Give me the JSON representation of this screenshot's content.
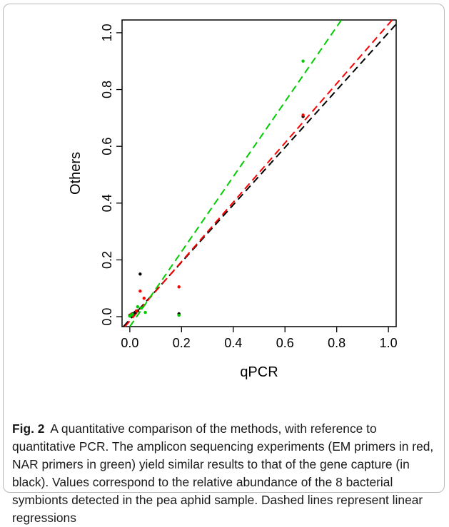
{
  "caption": {
    "label": "Fig. 2",
    "text": "A quantitative comparison of the methods, with reference to quantitative PCR. The amplicon sequencing experiments (EM primers in red, NAR primers in green) yield similar results to that of the gene capture (in black). Values correspond to the relative abundance of the 8 bacterial symbionts detected in the pea aphid sample. Dashed lines represent linear regressions"
  },
  "colors": {
    "gene_capture": "#000000",
    "em_primers": "#ff0000",
    "nar_primers": "#00cc00"
  },
  "chart_data": {
    "type": "scatter",
    "title": "",
    "xlabel": "qPCR",
    "ylabel": "Others",
    "xlim": [
      -0.03,
      1.03
    ],
    "ylim": [
      -0.035,
      1.045
    ],
    "xticks": [
      0.0,
      0.2,
      0.4,
      0.6,
      0.8,
      1.0
    ],
    "yticks": [
      0.0,
      0.2,
      0.4,
      0.6,
      0.8,
      1.0
    ],
    "xtick_labels": [
      "0.0",
      "0.2",
      "0.4",
      "0.6",
      "0.8",
      "1.0"
    ],
    "ytick_labels": [
      "0.0",
      "0.2",
      "0.4",
      "0.6",
      "0.8",
      "1.0"
    ],
    "grid": false,
    "series": [
      {
        "color": "#000000",
        "x": [
          0.0,
          0.005,
          0.01,
          0.02,
          0.03,
          0.04,
          0.19,
          0.67
        ],
        "y": [
          0.005,
          0.003,
          0.01,
          0.015,
          0.02,
          0.15,
          0.01,
          0.705
        ],
        "regression": {
          "slope": 1.01,
          "intercept": -0.01
        }
      },
      {
        "color": "#ff0000",
        "x": [
          0.0,
          0.005,
          0.01,
          0.025,
          0.04,
          0.055,
          0.19,
          0.67
        ],
        "y": [
          0.003,
          0.008,
          0.005,
          0.02,
          0.09,
          0.065,
          0.105,
          0.71
        ],
        "regression": {
          "slope": 1.045,
          "intercept": -0.015
        }
      },
      {
        "color": "#00cc00",
        "x": [
          0.0,
          0.005,
          0.01,
          0.03,
          0.045,
          0.06,
          0.19,
          0.67
        ],
        "y": [
          0.002,
          0.005,
          0.008,
          0.035,
          0.03,
          0.015,
          0.005,
          0.9
        ],
        "regression": {
          "slope": 1.32,
          "intercept": -0.035
        }
      }
    ]
  }
}
